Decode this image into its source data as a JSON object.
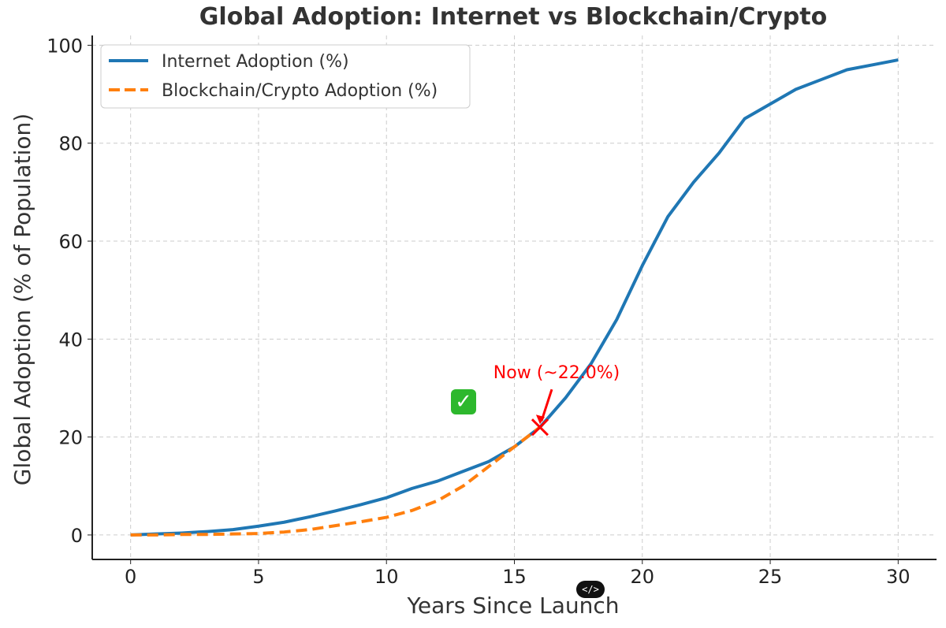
{
  "chart_data": {
    "type": "line",
    "title": "Global Adoption: Internet vs Blockchain/Crypto",
    "xlabel": "Years Since Launch",
    "ylabel": "Global Adoption (% of Population)",
    "xlim": [
      -1.5,
      31.5
    ],
    "ylim": [
      -5,
      102
    ],
    "xticks": [
      0,
      5,
      10,
      15,
      20,
      25,
      30
    ],
    "yticks": [
      0,
      20,
      40,
      60,
      80,
      100
    ],
    "grid": true,
    "legend_position": "top-left",
    "series": [
      {
        "name": "Internet Adoption (%)",
        "color": "#1f77b4",
        "style": "solid",
        "x": [
          0,
          1,
          2,
          3,
          4,
          5,
          6,
          7,
          8,
          9,
          10,
          11,
          12,
          13,
          14,
          15,
          16,
          17,
          18,
          19,
          20,
          21,
          22,
          23,
          24,
          25,
          26,
          27,
          28,
          29,
          30
        ],
        "y": [
          0,
          0.2,
          0.4,
          0.7,
          1.1,
          1.8,
          2.6,
          3.7,
          4.9,
          6.2,
          7.6,
          9.5,
          11,
          13,
          15,
          18,
          22,
          28,
          35,
          44,
          55,
          65,
          72,
          78,
          85,
          88,
          91,
          93,
          95,
          96,
          97
        ]
      },
      {
        "name": "Blockchain/Crypto Adoption (%)",
        "color": "#ff7f0e",
        "style": "dashed",
        "x": [
          0,
          1,
          2,
          3,
          4,
          5,
          6,
          7,
          8,
          9,
          10,
          11,
          12,
          13,
          14,
          15,
          16
        ],
        "y": [
          0,
          0,
          0.1,
          0.1,
          0.2,
          0.3,
          0.6,
          1.1,
          1.9,
          2.7,
          3.6,
          5,
          7,
          10,
          14,
          18,
          22
        ]
      }
    ],
    "annotation": {
      "text": "Now (~22.0%)",
      "x": 16,
      "y": 22,
      "color": "#ff0000"
    }
  },
  "overlays": {
    "check_icon": "check-mark-button-icon",
    "code_badge": "</>"
  }
}
